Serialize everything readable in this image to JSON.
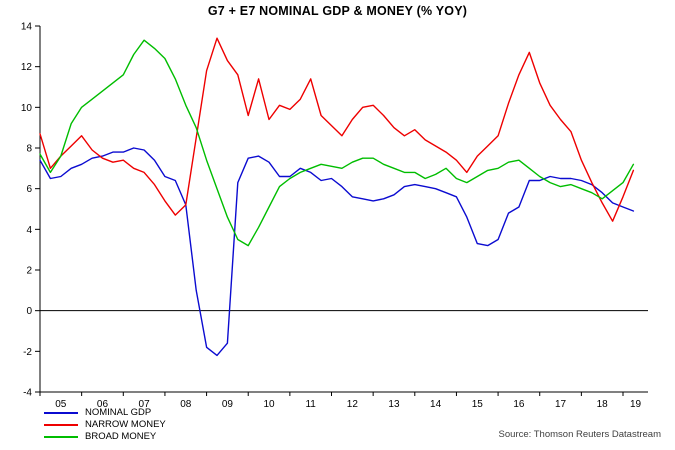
{
  "title": "G7 + E7 NOMINAL GDP & MONEY (% YOY)",
  "source": "Source: Thomson Reuters Datastream",
  "chart_data": {
    "type": "line",
    "title": "G7 + E7 NOMINAL GDP & MONEY (% YOY)",
    "xlabel": "",
    "ylabel": "",
    "xlim": [
      2005,
      2019.6
    ],
    "ylim": [
      -4,
      14
    ],
    "grid": false,
    "zero_line": true,
    "legend_position": "bottom-left",
    "yticks": [
      -4,
      -2,
      0,
      2,
      4,
      6,
      8,
      10,
      12,
      14
    ],
    "xticks": [
      2005,
      2006,
      2007,
      2008,
      2009,
      2010,
      2011,
      2012,
      2013,
      2014,
      2015,
      2016,
      2017,
      2018,
      2019
    ],
    "xtick_labels": [
      "05",
      "06",
      "07",
      "08",
      "09",
      "10",
      "11",
      "12",
      "13",
      "14",
      "15",
      "16",
      "17",
      "18",
      "19"
    ],
    "x": [
      2005,
      2005.25,
      2005.5,
      2005.75,
      2006,
      2006.25,
      2006.5,
      2006.75,
      2007,
      2007.25,
      2007.5,
      2007.75,
      2008,
      2008.25,
      2008.5,
      2008.75,
      2009,
      2009.25,
      2009.5,
      2009.75,
      2010,
      2010.25,
      2010.5,
      2010.75,
      2011,
      2011.25,
      2011.5,
      2011.75,
      2012,
      2012.25,
      2012.5,
      2012.75,
      2013,
      2013.25,
      2013.5,
      2013.75,
      2014,
      2014.25,
      2014.5,
      2014.75,
      2015,
      2015.25,
      2015.5,
      2015.75,
      2016,
      2016.25,
      2016.5,
      2016.75,
      2017,
      2017.25,
      2017.5,
      2017.75,
      2018,
      2018.25,
      2018.5,
      2018.75,
      2019,
      2019.25
    ],
    "series": [
      {
        "name": "NOMINAL GDP",
        "color": "#0b0bd0",
        "values": [
          7.4,
          6.5,
          6.6,
          7.0,
          7.2,
          7.5,
          7.6,
          7.8,
          7.8,
          8.0,
          7.9,
          7.4,
          6.6,
          6.4,
          5.2,
          1.0,
          -1.8,
          -2.2,
          -1.6,
          6.3,
          7.5,
          7.6,
          7.3,
          6.6,
          6.6,
          7.0,
          6.8,
          6.4,
          6.5,
          6.1,
          5.6,
          5.5,
          5.4,
          5.5,
          5.7,
          6.1,
          6.2,
          6.1,
          6.0,
          5.8,
          5.6,
          4.6,
          3.3,
          3.2,
          3.5,
          4.8,
          5.1,
          6.4,
          6.4,
          6.6,
          6.5,
          6.5,
          6.4,
          6.2,
          5.8,
          5.3,
          5.1,
          4.9
        ]
      },
      {
        "name": "NARROW MONEY",
        "color": "#ee0000",
        "values": [
          8.7,
          7.0,
          7.6,
          8.1,
          8.6,
          7.9,
          7.5,
          7.3,
          7.4,
          7.0,
          6.8,
          6.2,
          5.4,
          4.7,
          5.2,
          8.5,
          11.8,
          13.4,
          12.3,
          11.6,
          9.6,
          11.4,
          9.4,
          10.1,
          9.9,
          10.4,
          11.4,
          9.6,
          9.1,
          8.6,
          9.4,
          10.0,
          10.1,
          9.6,
          9.0,
          8.6,
          8.9,
          8.4,
          8.1,
          7.8,
          7.4,
          6.8,
          7.6,
          8.1,
          8.6,
          10.2,
          11.6,
          12.7,
          11.2,
          10.1,
          9.4,
          8.8,
          7.4,
          6.3,
          5.3,
          4.4,
          5.6,
          6.9
        ]
      },
      {
        "name": "BROAD MONEY",
        "color": "#00bd00",
        "values": [
          7.7,
          6.8,
          7.6,
          9.2,
          10.0,
          10.4,
          10.8,
          11.2,
          11.6,
          12.6,
          13.3,
          12.9,
          12.4,
          11.4,
          10.1,
          9.0,
          7.4,
          6.0,
          4.6,
          3.5,
          3.2,
          4.1,
          5.1,
          6.1,
          6.5,
          6.8,
          7.0,
          7.2,
          7.1,
          7.0,
          7.3,
          7.5,
          7.5,
          7.2,
          7.0,
          6.8,
          6.8,
          6.5,
          6.7,
          7.0,
          6.5,
          6.3,
          6.6,
          6.9,
          7.0,
          7.3,
          7.4,
          7.0,
          6.6,
          6.3,
          6.1,
          6.2,
          6.0,
          5.8,
          5.5,
          5.9,
          6.3,
          7.2
        ]
      }
    ]
  }
}
